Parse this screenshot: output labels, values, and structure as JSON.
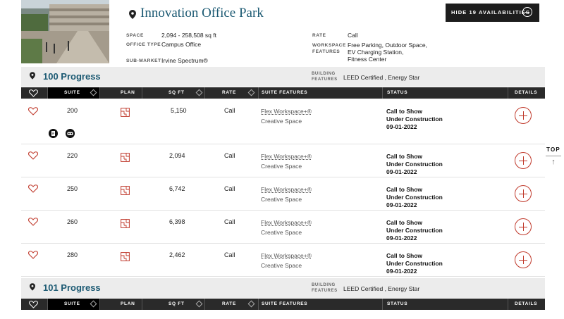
{
  "property": {
    "title": "Innovation Office Park",
    "space_label": "SPACE",
    "space_value": "2,094 - 258,508 sq ft",
    "type_label": "OFFICE TYPE",
    "type_value": "Campus Office",
    "submarket_label": "SUB-MARKET",
    "submarket_value": "Irvine Spectrum®",
    "rate_label": "RATE",
    "rate_value": "Call",
    "workspace_label_1": "WORKSPACE",
    "workspace_label_2": "FEATURES",
    "workspace_line_1": "Free Parking, Outdoor Space,",
    "workspace_line_2": "EV Charging Station,",
    "workspace_line_3": "Fitness Center",
    "hide_button": "HIDE 19 AVAILABILITIES"
  },
  "table_headers": {
    "suite": "SUITE",
    "plan": "PLAN",
    "sqft": "SQ FT",
    "rate": "RATE",
    "features": "SUITE FEATURES",
    "status": "STATUS",
    "details": "DETAILS"
  },
  "buildings": [
    {
      "name": "100 Progress",
      "features_label_1": "BUILDING",
      "features_label_2": "FEATURES",
      "features_value": "LEED Certified , Energy Star"
    },
    {
      "name": "101 Progress",
      "features_label_1": "BUILDING",
      "features_label_2": "FEATURES",
      "features_value": "LEED Certified , Energy Star"
    }
  ],
  "suites": [
    {
      "suite": "200",
      "sqft": "5,150",
      "rate": "Call",
      "feature_link": "Flex Workspace+®",
      "feature_2": "Creative Space",
      "status_1": "Call to Show",
      "status_2": "Under Construction",
      "status_3": "09-01-2022"
    },
    {
      "suite": "220",
      "sqft": "2,094",
      "rate": "Call",
      "feature_link": "Flex Workspace+®",
      "feature_2": "Creative Space",
      "status_1": "Call to Show",
      "status_2": "Under Construction",
      "status_3": "09-01-2022"
    },
    {
      "suite": "250",
      "sqft": "6,742",
      "rate": "Call",
      "feature_link": "Flex Workspace+®",
      "feature_2": "Creative Space",
      "status_1": "Call to Show",
      "status_2": "Under Construction",
      "status_3": "09-01-2022"
    },
    {
      "suite": "260",
      "sqft": "6,398",
      "rate": "Call",
      "feature_link": "Flex Workspace+®",
      "feature_2": "Creative Space",
      "status_1": "Call to Show",
      "status_2": "Under Construction",
      "status_3": "09-01-2022"
    },
    {
      "suite": "280",
      "sqft": "2,462",
      "rate": "Call",
      "feature_link": "Flex Workspace+®",
      "feature_2": "Creative Space",
      "status_1": "Call to Show",
      "status_2": "Under Construction",
      "status_3": "09-01-2022"
    }
  ],
  "top_link": "TOP",
  "icons": [
    "map-pin-icon",
    "heart-icon",
    "floor-plan-icon",
    "plus-circle-icon",
    "brochure-icon",
    "virtual-tour-icon",
    "sort-icon",
    "minus-circle-icon",
    "arrow-up-icon"
  ],
  "colors": {
    "brand_blue": "#1c5a73",
    "accent_red": "#c0392b",
    "header_dark": "#2a2a2a"
  }
}
